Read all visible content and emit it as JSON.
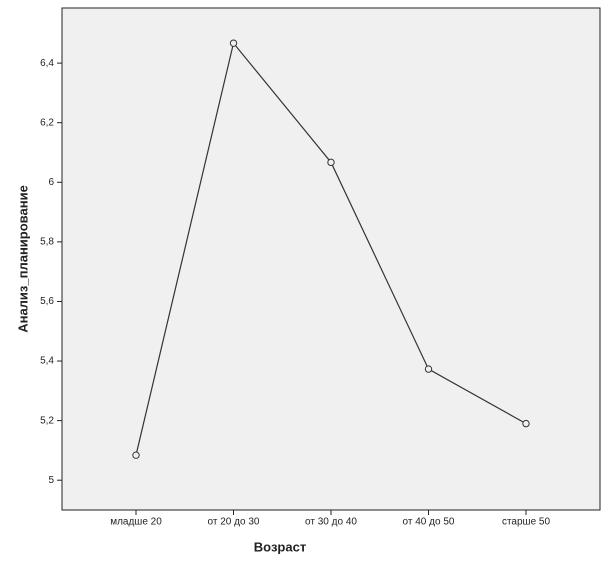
{
  "chart_data": {
    "type": "line",
    "x_label": "Возраст",
    "y_label": "Анализ_планирование",
    "categories": [
      "младше 20",
      "от 20 до 30",
      "от 30 до 40",
      "от 40 до 50",
      "старше 50"
    ],
    "values": [
      5.084,
      6.467,
      6.067,
      5.373,
      5.19
    ],
    "color": "#333333",
    "background": "#f0f0f0",
    "ylim": [
      4.9,
      6.585
    ],
    "yticks": [
      5,
      {
        "value": 5.2,
        "label": "5,2"
      },
      {
        "value": 5.4,
        "label": "5,4"
      },
      {
        "value": 5.6,
        "label": "5,6"
      },
      {
        "value": 5.8,
        "label": "5,8"
      },
      6,
      {
        "value": 6.2,
        "label": "6,2"
      },
      {
        "value": 6.4,
        "label": "6,4"
      }
    ]
  }
}
